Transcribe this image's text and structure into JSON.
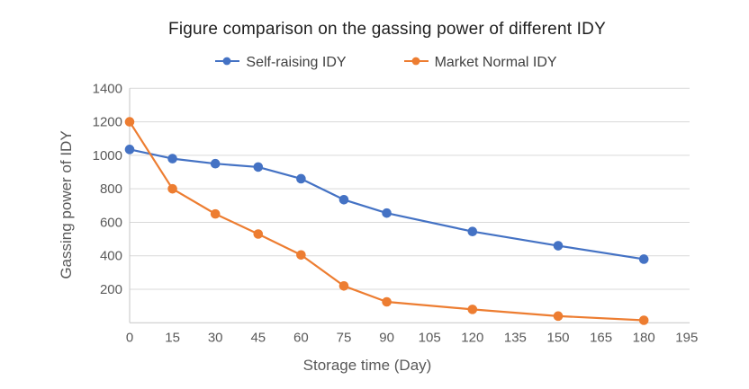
{
  "chart_data": {
    "type": "line",
    "title": "Figure comparison on the gassing power of different IDY",
    "xlabel": "Storage time (Day)",
    "ylabel": "Gassing power of IDY",
    "x": [
      0,
      15,
      30,
      45,
      60,
      75,
      90,
      120,
      150,
      180
    ],
    "series": [
      {
        "name": "Self-raising IDY",
        "color": "#4472C4",
        "values": [
          1035,
          980,
          950,
          930,
          860,
          735,
          655,
          545,
          460,
          380
        ]
      },
      {
        "name": "Market Normal IDY",
        "color": "#ED7D31",
        "values": [
          1200,
          800,
          650,
          530,
          405,
          220,
          125,
          80,
          40,
          15
        ]
      }
    ],
    "x_ticks": [
      0,
      15,
      30,
      45,
      60,
      75,
      90,
      105,
      120,
      135,
      150,
      165,
      180,
      195
    ],
    "y_ticks": [
      200,
      400,
      600,
      800,
      1000,
      1200,
      1400
    ],
    "xlim": [
      0,
      195
    ],
    "ylim": [
      0,
      1400
    ],
    "grid": "horizontal",
    "legend_position": "top",
    "colors": {
      "gridline": "#D9D9D9",
      "axis": "#C6C6C6",
      "tick_text": "#595959",
      "title_text": "#1F1F1F",
      "legend_text": "#404040"
    }
  }
}
